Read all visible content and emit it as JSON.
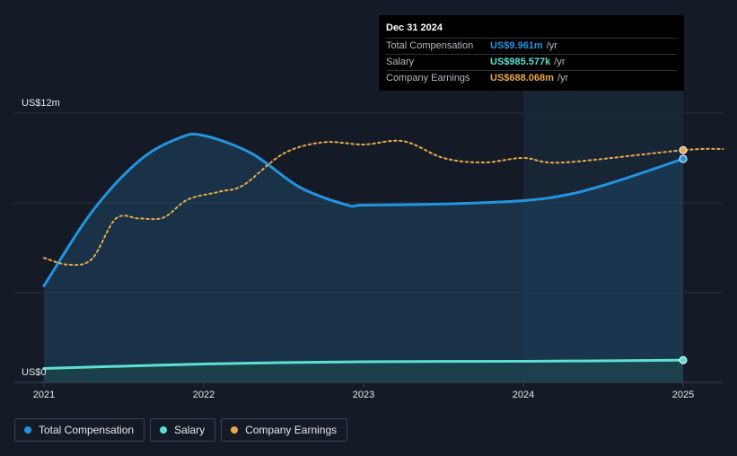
{
  "tooltip": {
    "date": "Dec 31 2024",
    "rows": [
      {
        "name": "Total Compensation",
        "value": "US$9.961m",
        "unit": "/yr",
        "color": "#2394df"
      },
      {
        "name": "Salary",
        "value": "US$985.577k",
        "unit": "/yr",
        "color": "#5de0cf"
      },
      {
        "name": "Company Earnings",
        "value": "US$688.068m",
        "unit": "/yr",
        "color": "#e8a94e"
      }
    ]
  },
  "legend": [
    {
      "label": "Total Compensation",
      "color": "#2394df"
    },
    {
      "label": "Salary",
      "color": "#5de0cf"
    },
    {
      "label": "Company Earnings",
      "color": "#e8a94e"
    }
  ],
  "chart_data": {
    "type": "line",
    "y_axis_labels": {
      "top": "US$12m",
      "bottom": "US$0"
    },
    "ylim": [
      0,
      12
    ],
    "xlim": [
      2021.0,
      2025.25
    ],
    "x_ticks": [
      "2021",
      "2022",
      "2023",
      "2024",
      "2025"
    ],
    "grid": true,
    "legend_position": "bottom-left",
    "series": [
      {
        "name": "Total Compensation",
        "color": "#2394df",
        "x": [
          2021.0,
          2021.3,
          2021.6,
          2021.85,
          2022.0,
          2022.3,
          2022.6,
          2022.9,
          2023.0,
          2023.5,
          2024.0,
          2024.3,
          2024.6,
          2025.0
        ],
        "y": [
          4.3,
          7.6,
          9.9,
          10.9,
          11.0,
          10.2,
          8.7,
          7.9,
          7.9,
          7.95,
          8.1,
          8.4,
          9.0,
          9.961
        ]
      },
      {
        "name": "Salary",
        "color": "#5de0cf",
        "x": [
          2021.0,
          2022.0,
          2023.0,
          2024.0,
          2025.0
        ],
        "y": [
          0.62,
          0.82,
          0.92,
          0.94,
          0.99
        ]
      },
      {
        "name": "Company Earnings",
        "color": "#e8a94e",
        "dashed": true,
        "x": [
          2021.0,
          2021.15,
          2021.3,
          2021.45,
          2021.6,
          2021.75,
          2021.9,
          2022.1,
          2022.25,
          2022.5,
          2022.75,
          2023.0,
          2023.25,
          2023.5,
          2023.75,
          2024.0,
          2024.25,
          2025.0,
          2025.25
        ],
        "y": [
          5.55,
          5.25,
          5.5,
          7.3,
          7.3,
          7.35,
          8.15,
          8.5,
          8.8,
          10.2,
          10.7,
          10.6,
          10.75,
          10.0,
          9.8,
          10.0,
          9.8,
          10.35,
          10.4
        ]
      }
    ]
  }
}
